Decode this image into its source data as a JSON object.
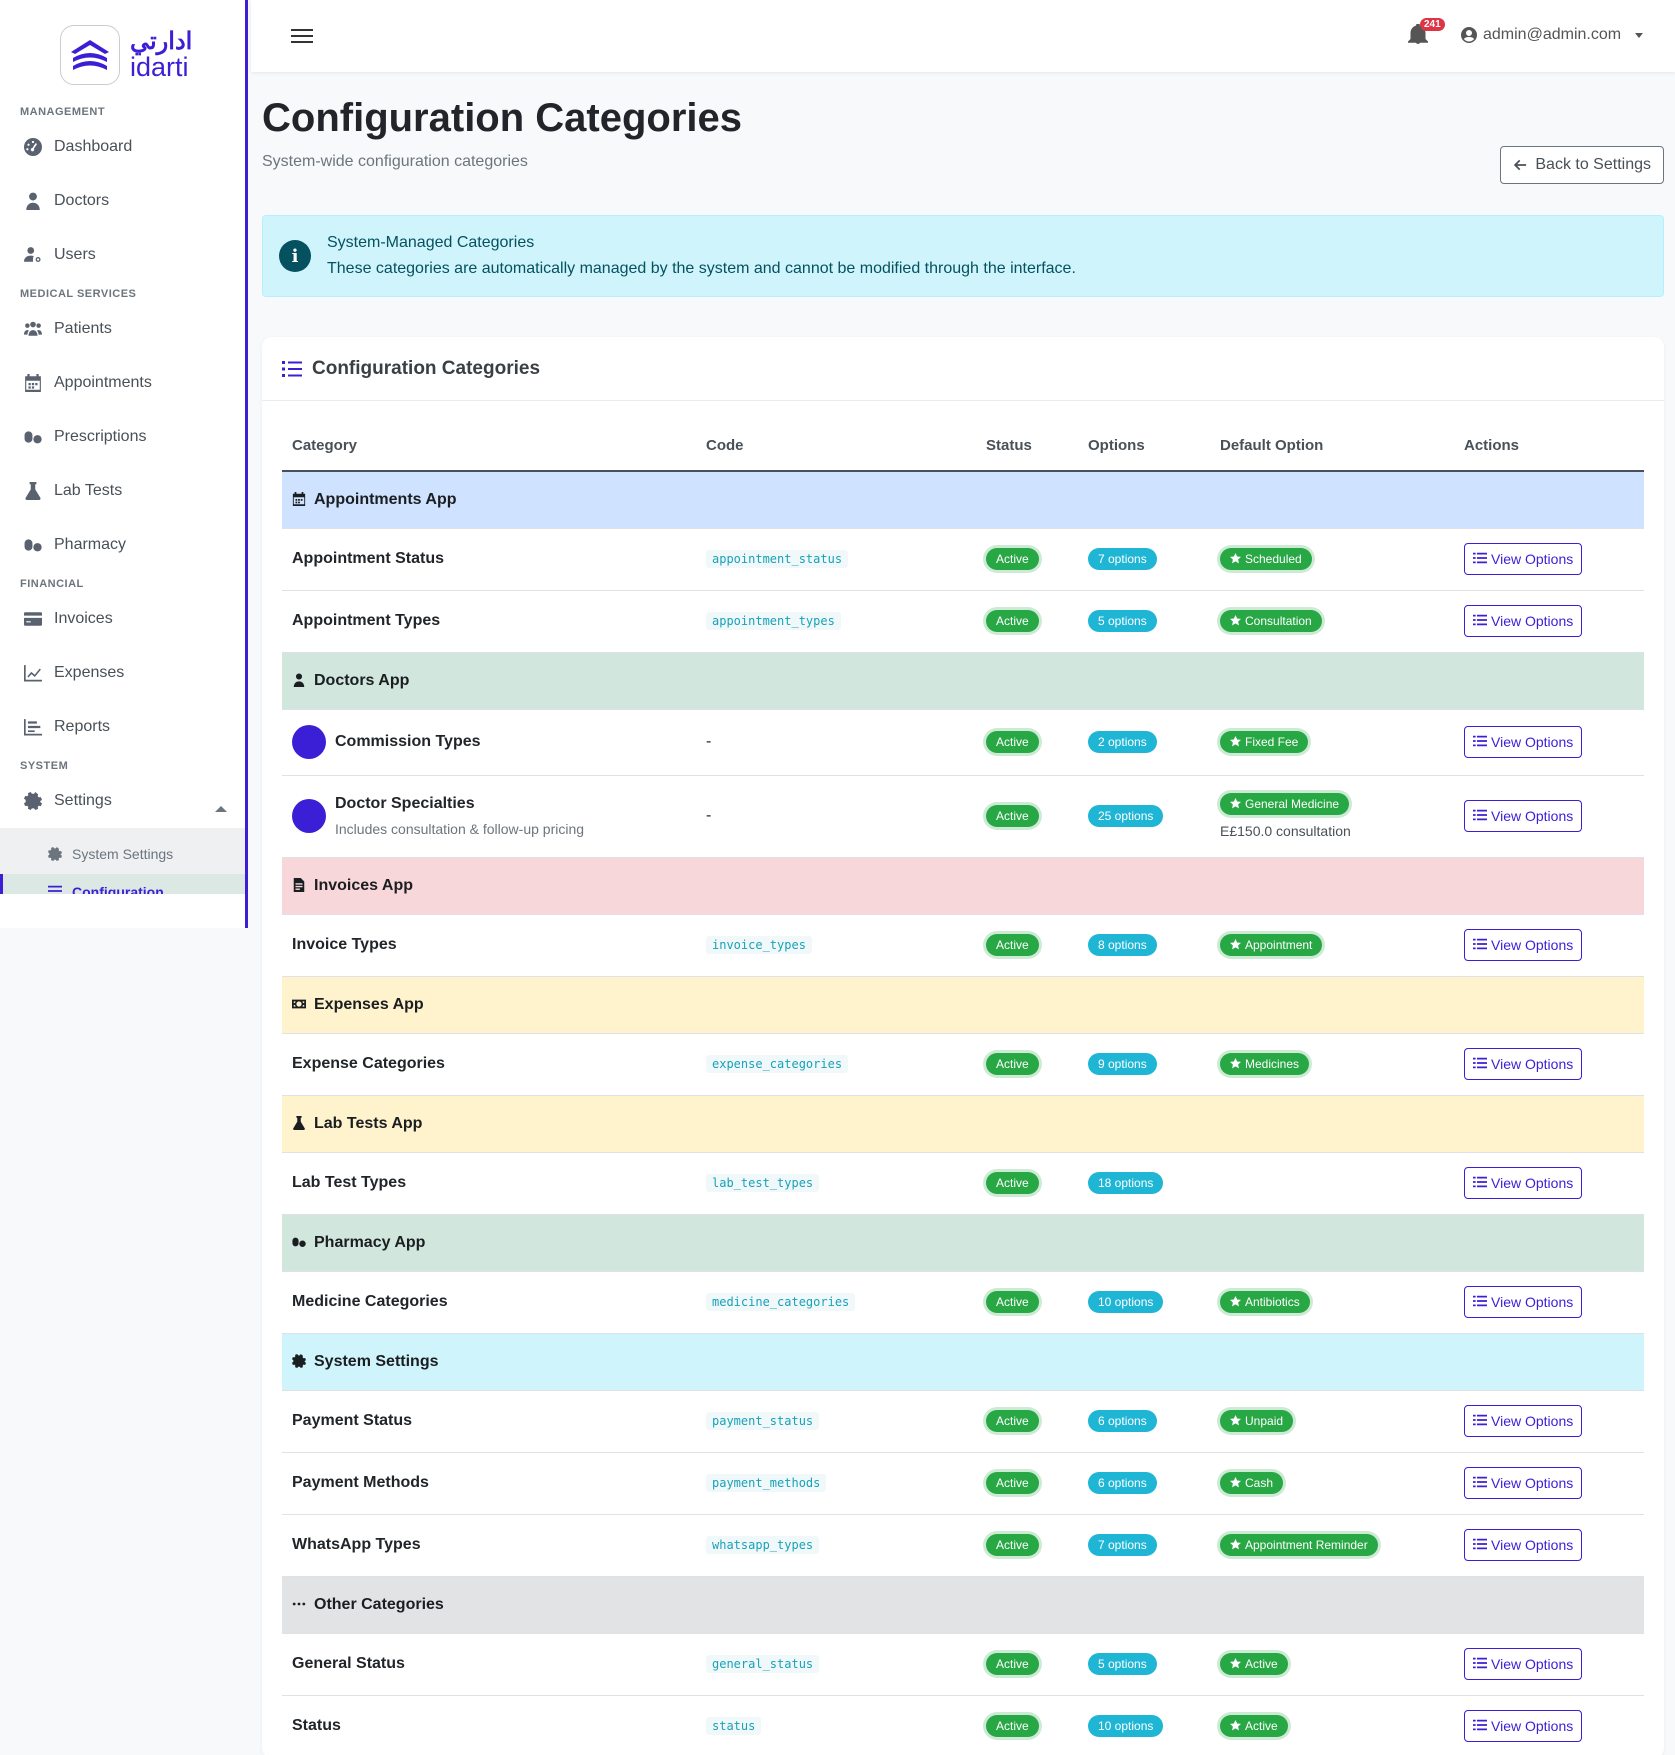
{
  "brand": {
    "arabic": "ادارتي",
    "latin": "idarti"
  },
  "sidebar": {
    "sections": [
      {
        "label": "MANAGEMENT",
        "items": [
          {
            "label": "Dashboard",
            "icon": "dashboard-icon"
          },
          {
            "label": "Doctors",
            "icon": "doctor-icon"
          },
          {
            "label": "Users",
            "icon": "users-cog-icon"
          }
        ]
      },
      {
        "label": "MEDICAL SERVICES",
        "items": [
          {
            "label": "Patients",
            "icon": "patients-icon"
          },
          {
            "label": "Appointments",
            "icon": "calendar-icon"
          },
          {
            "label": "Prescriptions",
            "icon": "pills-icon"
          },
          {
            "label": "Lab Tests",
            "icon": "flask-icon"
          },
          {
            "label": "Pharmacy",
            "icon": "pharmacy-icon"
          }
        ]
      },
      {
        "label": "FINANCIAL",
        "items": [
          {
            "label": "Invoices",
            "icon": "credit-card-icon"
          },
          {
            "label": "Expenses",
            "icon": "line-chart-icon"
          },
          {
            "label": "Reports",
            "icon": "bar-chart-icon"
          }
        ]
      },
      {
        "label": "SYSTEM",
        "items": [
          {
            "label": "Settings",
            "icon": "gear-icon"
          }
        ]
      }
    ],
    "submenu": [
      {
        "label": "System Settings"
      },
      {
        "label": "Configuration"
      }
    ]
  },
  "header": {
    "notification_count": "241",
    "user_email": "admin@admin.com"
  },
  "page": {
    "title": "Configuration Categories",
    "subtitle": "System-wide configuration categories",
    "back_label": "Back to Settings"
  },
  "info": {
    "title": "System-Managed Categories",
    "text": "These categories are automatically managed by the system and cannot be modified through the interface."
  },
  "card": {
    "title": "Configuration Categories"
  },
  "table": {
    "columns": [
      "Category",
      "Code",
      "Status",
      "Options",
      "Default Option",
      "Actions"
    ],
    "view_label": "View Options",
    "groups": [
      {
        "title": "Appointments App",
        "color": "#cfe2ff",
        "icon": "calendar-icon",
        "rows": [
          {
            "name": "Appointment Status",
            "code": "appointment_status",
            "status": "Active",
            "options": "7 options",
            "default": "Scheduled"
          },
          {
            "name": "Appointment Types",
            "code": "appointment_types",
            "status": "Active",
            "options": "5 options",
            "default": "Consultation"
          }
        ]
      },
      {
        "title": "Doctors App",
        "color": "#d1e7dd",
        "icon": "doctor-icon",
        "rows": [
          {
            "name": "Commission Types",
            "code": "-",
            "status": "Active",
            "options": "2 options",
            "default": "Fixed Fee",
            "dot": true
          },
          {
            "name": "Doctor Specialties",
            "desc": "Includes consultation & follow-up pricing",
            "code": "-",
            "status": "Active",
            "options": "25 options",
            "default": "General Medicine",
            "default_sub": "E£150.0 consultation",
            "dot": true
          }
        ]
      },
      {
        "title": "Invoices App",
        "color": "#f8d7da",
        "icon": "invoice-icon",
        "rows": [
          {
            "name": "Invoice Types",
            "code": "invoice_types",
            "status": "Active",
            "options": "8 options",
            "default": "Appointment"
          }
        ]
      },
      {
        "title": "Expenses App",
        "color": "#fff3cd",
        "icon": "money-icon",
        "rows": [
          {
            "name": "Expense Categories",
            "code": "expense_categories",
            "status": "Active",
            "options": "9 options",
            "default": "Medicines"
          }
        ]
      },
      {
        "title": "Lab Tests App",
        "color": "#fff3cd",
        "icon": "flask-icon",
        "rows": [
          {
            "name": "Lab Test Types",
            "code": "lab_test_types",
            "status": "Active",
            "options": "18 options",
            "default": ""
          }
        ]
      },
      {
        "title": "Pharmacy App",
        "color": "#d1e7dd",
        "icon": "pills-icon",
        "rows": [
          {
            "name": "Medicine Categories",
            "code": "medicine_categories",
            "status": "Active",
            "options": "10 options",
            "default": "Antibiotics"
          }
        ]
      },
      {
        "title": "System Settings",
        "color": "#cff4fc",
        "icon": "gear-icon",
        "rows": [
          {
            "name": "Payment Status",
            "code": "payment_status",
            "status": "Active",
            "options": "6 options",
            "default": "Unpaid"
          },
          {
            "name": "Payment Methods",
            "code": "payment_methods",
            "status": "Active",
            "options": "6 options",
            "default": "Cash"
          },
          {
            "name": "WhatsApp Types",
            "code": "whatsapp_types",
            "status": "Active",
            "options": "7 options",
            "default": "Appointment Reminder"
          }
        ]
      },
      {
        "title": "Other Categories",
        "color": "#e2e3e5",
        "icon": "ellipsis-icon",
        "rows": [
          {
            "name": "General Status",
            "code": "general_status",
            "status": "Active",
            "options": "5 options",
            "default": "Active"
          },
          {
            "name": "Status",
            "code": "status",
            "status": "Active",
            "options": "10 options",
            "default": "Active"
          }
        ]
      }
    ]
  }
}
